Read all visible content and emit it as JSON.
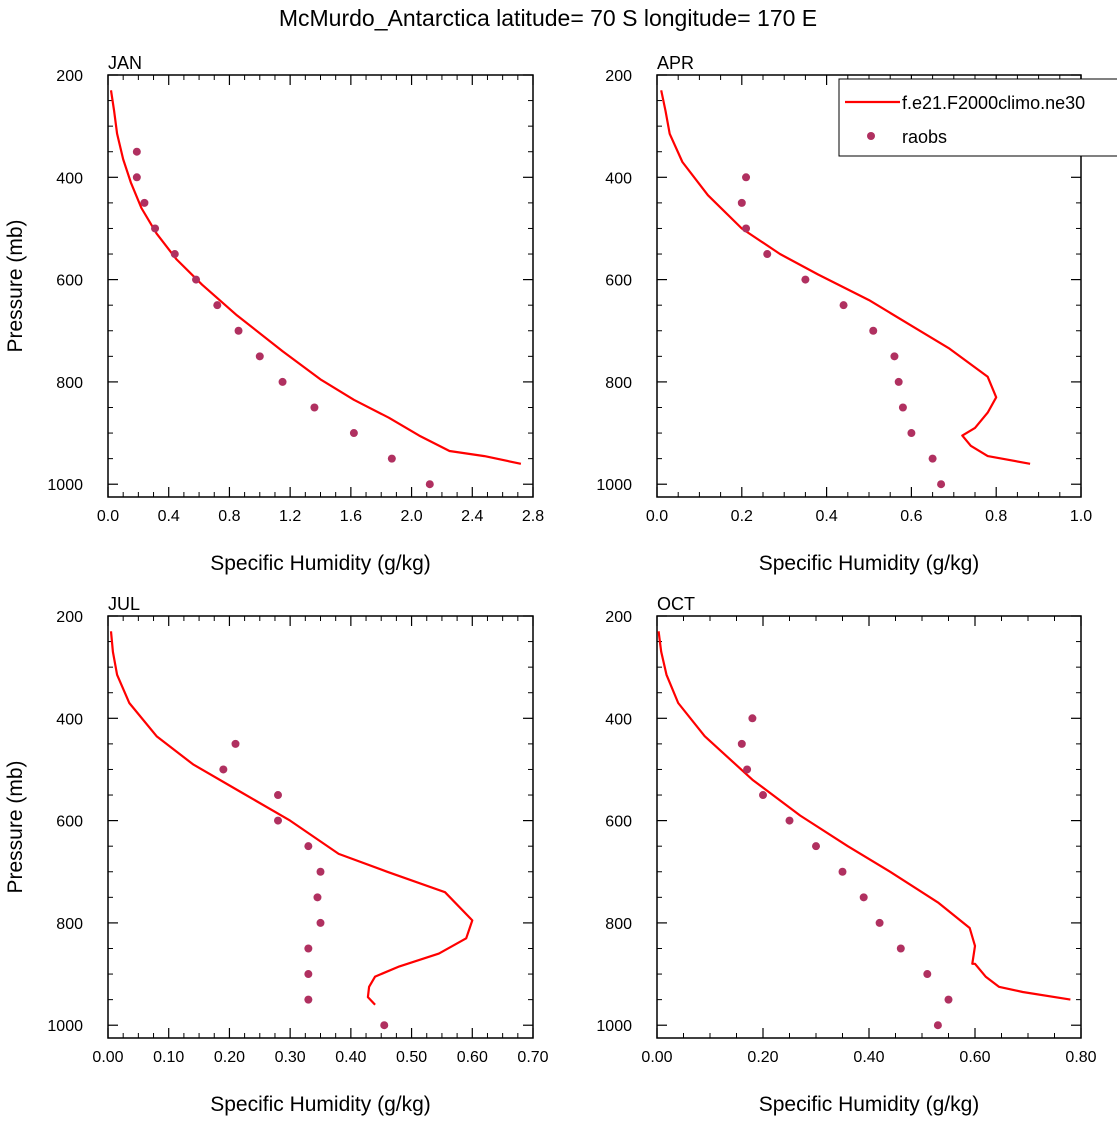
{
  "title": "McMurdo_Antarctica  latitude= 70 S longitude= 170 E",
  "colors": {
    "model": "#ff0000",
    "obs": "#b03060",
    "axis": "#000000"
  },
  "legend": {
    "placement": "top-right of APR panel",
    "entries": [
      {
        "label": "f.e21.F2000climo.ne30",
        "style": "line",
        "color": "#ff0000"
      },
      {
        "label": "raobs",
        "style": "marker",
        "color": "#b03060"
      }
    ]
  },
  "chart_data": [
    {
      "type": "line",
      "panel_label": "JAN",
      "xlabel": "Specific Humidity (g/kg)",
      "ylabel": "Pressure (mb)",
      "xlim": [
        0,
        2.8
      ],
      "ylim": [
        200,
        1025
      ],
      "y_inverted": true,
      "xticks": [
        0,
        0.4,
        0.8,
        1.2,
        1.6,
        2.0,
        2.4,
        2.8
      ],
      "xtick_labels": [
        "0.0",
        "0.4",
        "0.8",
        "1.2",
        "1.6",
        "2.0",
        "2.4",
        "2.8"
      ],
      "yticks": [
        200,
        400,
        600,
        800,
        1000
      ],
      "ytick_labels": [
        "200",
        "400",
        "600",
        "800",
        "1000"
      ],
      "series": [
        {
          "name": "f.e21.F2000climo.ne30",
          "kind": "line",
          "x": [
            0.02,
            0.04,
            0.06,
            0.1,
            0.15,
            0.22,
            0.32,
            0.45,
            0.62,
            0.85,
            1.15,
            1.4,
            1.62,
            1.85,
            2.05,
            2.25,
            2.48,
            2.72
          ],
          "y": [
            230,
            270,
            315,
            365,
            410,
            460,
            510,
            560,
            610,
            670,
            740,
            795,
            835,
            870,
            905,
            935,
            945,
            960
          ]
        },
        {
          "name": "raobs",
          "kind": "scatter",
          "x": [
            0.19,
            0.19,
            0.24,
            0.31,
            0.44,
            0.58,
            0.72,
            0.86,
            1.0,
            1.15,
            1.36,
            1.62,
            1.87,
            2.12
          ],
          "y": [
            350,
            400,
            450,
            500,
            550,
            600,
            650,
            700,
            750,
            800,
            850,
            900,
            950,
            1000
          ]
        }
      ]
    },
    {
      "type": "line",
      "panel_label": "APR",
      "xlabel": "Specific Humidity (g/kg)",
      "ylabel": "",
      "xlim": [
        0,
        1.0
      ],
      "ylim": [
        200,
        1025
      ],
      "y_inverted": true,
      "xticks": [
        0,
        0.2,
        0.4,
        0.6,
        0.8,
        1.0
      ],
      "xtick_labels": [
        "0.0",
        "0.2",
        "0.4",
        "0.6",
        "0.8",
        "1.0"
      ],
      "yticks": [
        200,
        400,
        600,
        800,
        1000
      ],
      "ytick_labels": [
        "200",
        "400",
        "600",
        "800",
        "1000"
      ],
      "series": [
        {
          "name": "f.e21.F2000climo.ne30",
          "kind": "line",
          "x": [
            0.01,
            0.02,
            0.03,
            0.06,
            0.12,
            0.2,
            0.29,
            0.38,
            0.5,
            0.62,
            0.69,
            0.78,
            0.8,
            0.78,
            0.75,
            0.72,
            0.74,
            0.78,
            0.88
          ],
          "y": [
            230,
            270,
            315,
            370,
            435,
            500,
            550,
            590,
            640,
            700,
            735,
            790,
            830,
            860,
            890,
            905,
            925,
            945,
            960
          ]
        },
        {
          "name": "raobs",
          "kind": "scatter",
          "x": [
            0.21,
            0.2,
            0.21,
            0.26,
            0.35,
            0.44,
            0.51,
            0.56,
            0.57,
            0.58,
            0.6,
            0.65,
            0.67
          ],
          "y": [
            400,
            450,
            500,
            550,
            600,
            650,
            700,
            750,
            800,
            850,
            900,
            950,
            1000
          ]
        }
      ]
    },
    {
      "type": "line",
      "panel_label": "JUL",
      "xlabel": "Specific Humidity (g/kg)",
      "ylabel": "Pressure (mb)",
      "xlim": [
        0,
        0.7
      ],
      "ylim": [
        200,
        1025
      ],
      "y_inverted": true,
      "xticks": [
        0,
        0.1,
        0.2,
        0.3,
        0.4,
        0.5,
        0.6,
        0.7
      ],
      "xtick_labels": [
        "0.00",
        "0.10",
        "0.20",
        "0.30",
        "0.40",
        "0.50",
        "0.60",
        "0.70"
      ],
      "yticks": [
        200,
        400,
        600,
        800,
        1000
      ],
      "ytick_labels": [
        "200",
        "400",
        "600",
        "800",
        "1000"
      ],
      "series": [
        {
          "name": "f.e21.F2000climo.ne30",
          "kind": "line",
          "x": [
            0.005,
            0.008,
            0.015,
            0.035,
            0.08,
            0.14,
            0.22,
            0.3,
            0.38,
            0.46,
            0.555,
            0.6,
            0.59,
            0.545,
            0.48,
            0.44,
            0.43,
            0.428,
            0.44
          ],
          "y": [
            230,
            270,
            315,
            370,
            435,
            490,
            545,
            600,
            665,
            700,
            740,
            795,
            830,
            860,
            885,
            905,
            925,
            945,
            960
          ]
        },
        {
          "name": "raobs",
          "kind": "scatter",
          "x": [
            0.21,
            0.19,
            0.28,
            0.28,
            0.33,
            0.35,
            0.345,
            0.35,
            0.33,
            0.33,
            0.33,
            0.455
          ],
          "y": [
            450,
            500,
            550,
            600,
            650,
            700,
            750,
            800,
            850,
            900,
            950,
            1000
          ]
        }
      ]
    },
    {
      "type": "line",
      "panel_label": "OCT",
      "xlabel": "Specific Humidity (g/kg)",
      "ylabel": "",
      "xlim": [
        0,
        0.8
      ],
      "ylim": [
        200,
        1025
      ],
      "y_inverted": true,
      "xticks": [
        0,
        0.2,
        0.4,
        0.6,
        0.8
      ],
      "xtick_labels": [
        "0.00",
        "0.20",
        "0.40",
        "0.60",
        "0.80"
      ],
      "yticks": [
        200,
        400,
        600,
        800,
        1000
      ],
      "ytick_labels": [
        "200",
        "400",
        "600",
        "800",
        "1000"
      ],
      "series": [
        {
          "name": "f.e21.F2000climo.ne30",
          "kind": "line",
          "x": [
            0.003,
            0.008,
            0.018,
            0.04,
            0.09,
            0.18,
            0.27,
            0.36,
            0.44,
            0.53,
            0.59,
            0.6,
            0.595,
            0.6,
            0.62,
            0.645,
            0.69,
            0.78
          ],
          "y": [
            230,
            270,
            315,
            370,
            435,
            520,
            590,
            650,
            700,
            760,
            810,
            845,
            880,
            880,
            905,
            925,
            935,
            950
          ]
        },
        {
          "name": "raobs",
          "kind": "scatter",
          "x": [
            0.18,
            0.16,
            0.17,
            0.2,
            0.25,
            0.3,
            0.35,
            0.39,
            0.42,
            0.46,
            0.51,
            0.55,
            0.53
          ],
          "y": [
            400,
            450,
            500,
            550,
            600,
            650,
            700,
            750,
            800,
            850,
            900,
            950,
            1000
          ]
        }
      ]
    }
  ]
}
